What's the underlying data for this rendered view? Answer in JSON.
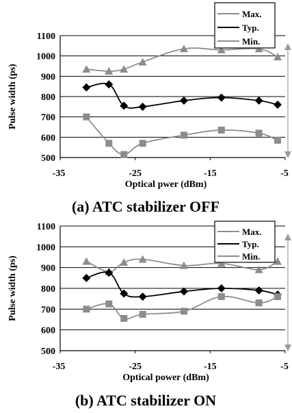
{
  "chart_data": [
    {
      "type": "line",
      "caption": "(a) ATC stabilizer OFF",
      "xlabel": "Optical pwer (dBm)",
      "ylabel": "Pulse width (ps)",
      "xlim": [
        -35,
        -5
      ],
      "ylim": [
        500,
        1100
      ],
      "x_ticks": [
        "-35",
        "-25",
        "-15",
        "-5"
      ],
      "y_ticks": [
        "500",
        "600",
        "700",
        "800",
        "900",
        "1000",
        "1100"
      ],
      "grid": "horizontal",
      "legend": "top-right",
      "series": [
        {
          "name": "Max.",
          "marker": "triangle",
          "color": "#8c8c8c",
          "x": [
            -31.5,
            -28.5,
            -26.5,
            -24,
            -18.5,
            -13.5,
            -8.5,
            -6
          ],
          "y": [
            935,
            925,
            935,
            970,
            1035,
            1030,
            1035,
            995
          ]
        },
        {
          "name": "Typ.",
          "marker": "diamond",
          "color": "#000000",
          "x": [
            -31.5,
            -28.5,
            -26.5,
            -24,
            -18.5,
            -13.5,
            -8.5,
            -6
          ],
          "y": [
            845,
            860,
            755,
            750,
            780,
            795,
            780,
            760
          ]
        },
        {
          "name": "Min.",
          "marker": "square",
          "color": "#8c8c8c",
          "x": [
            -31.5,
            -28.5,
            -26.5,
            -24,
            -18.5,
            -13.5,
            -8.5,
            -6
          ],
          "y": [
            700,
            570,
            515,
            570,
            610,
            635,
            620,
            585
          ]
        }
      ]
    },
    {
      "type": "line",
      "caption": "(b) ATC stabilizer ON",
      "xlabel": "Optical power (dBm)",
      "ylabel": "Pulse width (ps)",
      "xlim": [
        -35,
        -5
      ],
      "ylim": [
        500,
        1100
      ],
      "x_ticks": [
        "-35",
        "-25",
        "-15",
        "-5"
      ],
      "y_ticks": [
        "500",
        "600",
        "700",
        "800",
        "900",
        "1000",
        "1100"
      ],
      "grid": "horizontal",
      "legend": "top-right",
      "series": [
        {
          "name": "Max.",
          "marker": "triangle",
          "color": "#8c8c8c",
          "x": [
            -31.5,
            -28.5,
            -26.5,
            -24,
            -18.5,
            -13.5,
            -8.5,
            -6
          ],
          "y": [
            930,
            880,
            925,
            940,
            910,
            920,
            890,
            930
          ]
        },
        {
          "name": "Typ.",
          "marker": "diamond",
          "color": "#000000",
          "x": [
            -31.5,
            -28.5,
            -26.5,
            -24,
            -18.5,
            -13.5,
            -8.5,
            -6
          ],
          "y": [
            850,
            875,
            775,
            760,
            785,
            800,
            790,
            770
          ]
        },
        {
          "name": "Min.",
          "marker": "square",
          "color": "#8c8c8c",
          "x": [
            -31.5,
            -28.5,
            -26.5,
            -24,
            -18.5,
            -13.5,
            -8.5,
            -6
          ],
          "y": [
            700,
            725,
            655,
            675,
            690,
            760,
            730,
            760
          ]
        }
      ]
    }
  ]
}
